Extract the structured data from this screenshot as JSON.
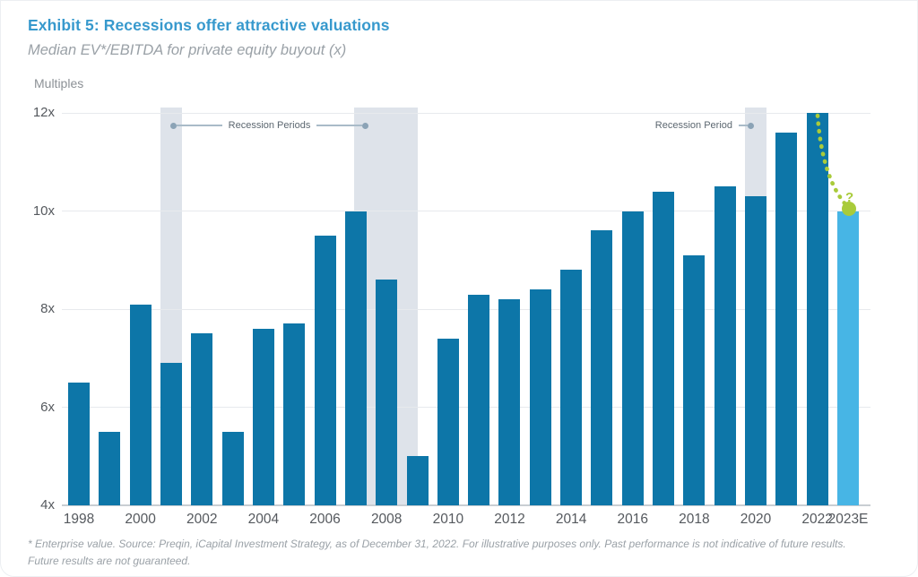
{
  "header": {
    "title": "Exhibit 5: Recessions offer attractive valuations",
    "subtitle": "Median EV*/EBITDA for private equity buyout (x)",
    "units_label": "Multiples"
  },
  "chart_data": {
    "type": "bar",
    "title": "Median EV*/EBITDA for private equity buyout (x)",
    "ylabel": "Multiples",
    "ylim": [
      4,
      12
    ],
    "grid": true,
    "legend_position": "none",
    "yticks": [
      {
        "label": "4x",
        "value": 4
      },
      {
        "label": "6x",
        "value": 6
      },
      {
        "label": "8x",
        "value": 8
      },
      {
        "label": "10x",
        "value": 10
      },
      {
        "label": "12x",
        "value": 12
      }
    ],
    "categories": [
      "1998",
      "1999",
      "2000",
      "2001",
      "2002",
      "2003",
      "2004",
      "2005",
      "2006",
      "2007",
      "2008",
      "2009",
      "2010",
      "2011",
      "2012",
      "2013",
      "2014",
      "2015",
      "2016",
      "2017",
      "2018",
      "2019",
      "2020",
      "2021",
      "2022",
      "2023E"
    ],
    "values": [
      6.5,
      5.5,
      8.1,
      6.9,
      7.5,
      5.5,
      7.6,
      7.7,
      9.5,
      10.0,
      8.6,
      5.0,
      7.4,
      8.3,
      8.2,
      8.4,
      8.8,
      9.6,
      10.0,
      10.4,
      9.1,
      10.5,
      10.3,
      11.6,
      12.0,
      10.0
    ],
    "x_tick_labels": [
      "1998",
      "2000",
      "2002",
      "2004",
      "2006",
      "2008",
      "2010",
      "2012",
      "2014",
      "2016",
      "2018",
      "2020",
      "2022",
      "2023E"
    ],
    "highlight_category": "2023E",
    "recession_bands": [
      {
        "from_year": 2000.65,
        "to_year": 2001.35
      },
      {
        "from_year": 2006.95,
        "to_year": 2009.0
      },
      {
        "from_year": 2019.65,
        "to_year": 2020.35
      }
    ]
  },
  "annotations": {
    "recession_periods_label": "Recession Periods",
    "recession_period_label": "Recession Period",
    "forecast_marker": "?"
  },
  "footnote": {
    "line1": "* Enterprise value. Source: Preqin, iCapital Investment Strategy, as of December 31, 2022. For illustrative purposes only. Past performance is not indicative of future results.",
    "line2": "Future results are not guaranteed."
  },
  "colors": {
    "title_blue": "#3799cd",
    "bar_blue": "#0d76a8",
    "highlight_light_blue": "#47b5e5",
    "recession_band_gray": "#dee3ea",
    "forecast_green": "#a9cb3a",
    "axis_text_gray": "#55595e",
    "footnote_gray": "#9aa1a7"
  }
}
